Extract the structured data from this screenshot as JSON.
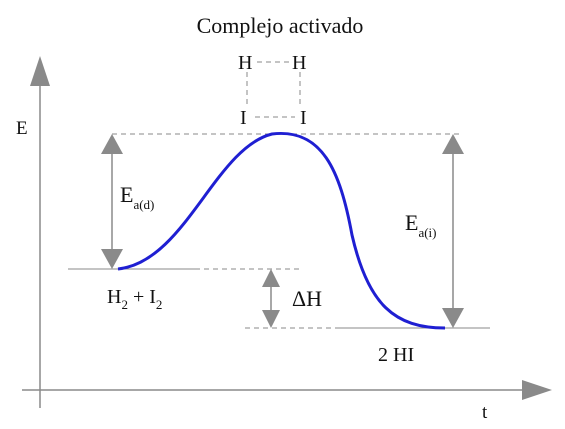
{
  "title": "Complejo activado",
  "axes": {
    "y_label": "E",
    "x_label": "t"
  },
  "complex": {
    "top_left": "H",
    "top_right": "H",
    "bottom_left": "I",
    "bottom_right": "I"
  },
  "reactants": {
    "label_1": "H",
    "sub_1": "2",
    "plus": " + I",
    "sub_2": "2"
  },
  "products": {
    "label": "2 HI"
  },
  "ea_direct": {
    "main": "E",
    "sub": "a(d)"
  },
  "ea_inverse": {
    "main": "E",
    "sub": "a(i)"
  },
  "delta_h": {
    "label": "ΔH"
  },
  "colors": {
    "curve": "#1f1fd2",
    "axis": "#888888",
    "arrow": "#8a8a8a",
    "dash": "#888888"
  }
}
